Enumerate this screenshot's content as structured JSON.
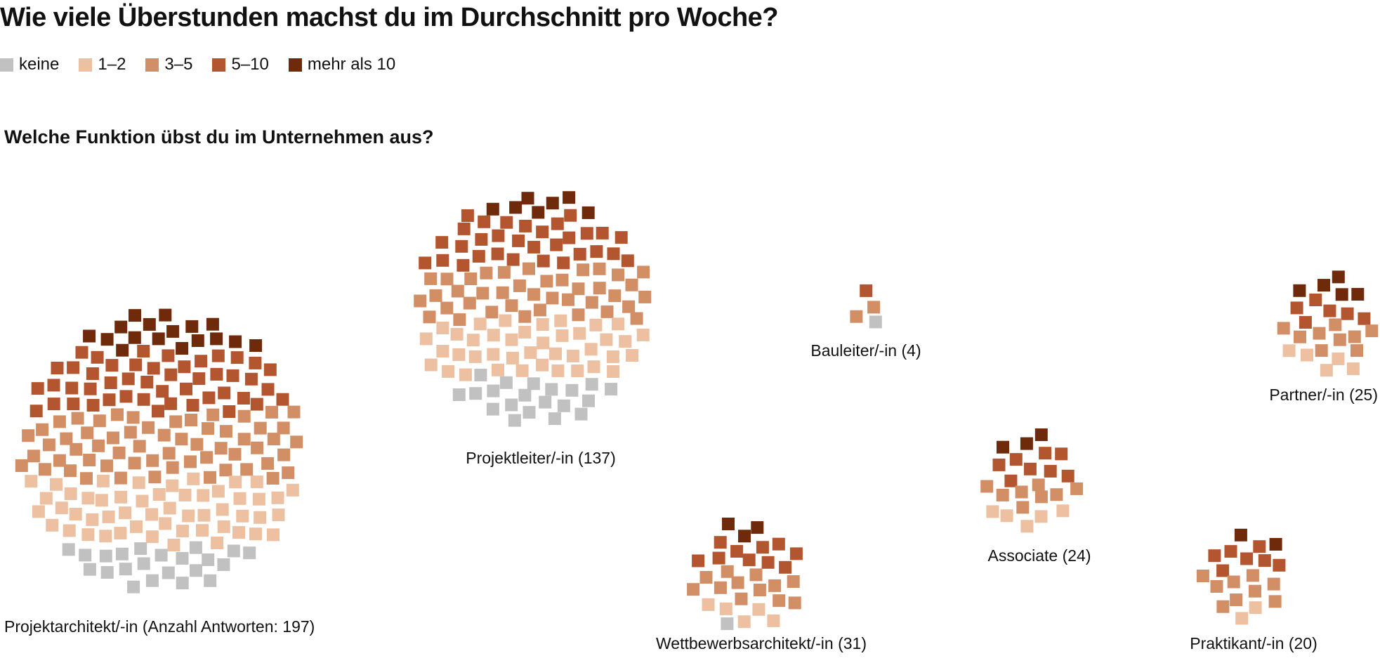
{
  "title": "Wie viele Überstunden machst du im Durchschnitt pro Woche?",
  "subtitle": "Welche Funktion übst du im Unternehmen aus?",
  "colors": {
    "keine": "#c1c1c1",
    "1-2": "#ecc0a0",
    "3-5": "#d28f66",
    "5-10": "#b3562f",
    "mehr als 10": "#6e2a0a"
  },
  "legend": [
    {
      "label": "keine",
      "color": "#c1c1c1"
    },
    {
      "label": "1–2",
      "color": "#ecc0a0"
    },
    {
      "label": "3–5",
      "color": "#d28f66"
    },
    {
      "label": "5–10",
      "color": "#b3562f"
    },
    {
      "label": "mehr als 10",
      "color": "#6e2a0a"
    }
  ],
  "chart_data": {
    "type": "unit-cluster",
    "categories": [
      "keine",
      "1–2",
      "3–5",
      "5–10",
      "mehr als 10"
    ],
    "groups": [
      {
        "label": "Projektarchitekt/-in (Anzahl Antworten: 197)",
        "total": 197,
        "counts": [
          22,
          52,
          59,
          47,
          17
        ]
      },
      {
        "label": "Projektleiter/-in (137)",
        "total": 137,
        "counts": [
          20,
          40,
          39,
          31,
          7
        ]
      },
      {
        "label": "Bauleiter/-in (4)",
        "total": 4,
        "counts": [
          1,
          0,
          2,
          1,
          0
        ]
      },
      {
        "label": "Partner/-in (25)",
        "total": 25,
        "counts": [
          0,
          5,
          9,
          6,
          5
        ]
      },
      {
        "label": "Wettbewerbsarchitekt/-in (31)",
        "total": 31,
        "counts": [
          1,
          5,
          12,
          10,
          3
        ]
      },
      {
        "label": "Associate (24)",
        "total": 24,
        "counts": [
          0,
          5,
          8,
          8,
          3
        ]
      },
      {
        "label": "Praktikant/-in (20)",
        "total": 20,
        "counts": [
          0,
          2,
          9,
          7,
          2
        ]
      }
    ]
  }
}
